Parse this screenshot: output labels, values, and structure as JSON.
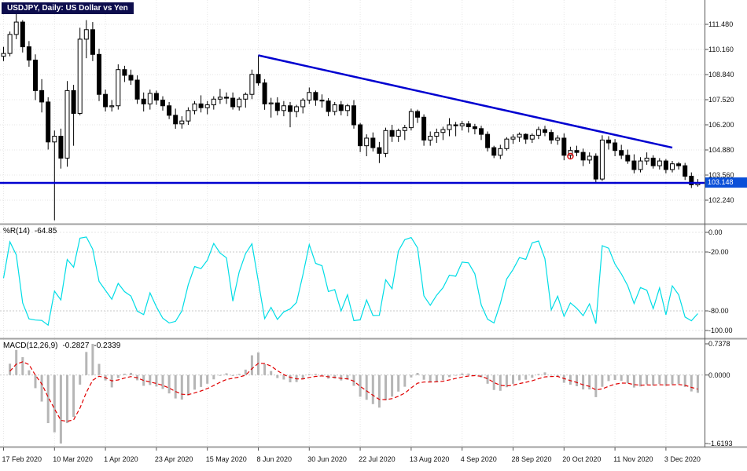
{
  "window": {
    "title_label": "USDJPY, Daily: US Dollar vs Yen"
  },
  "colors": {
    "background": "#ffffff",
    "grid": "#e6e6e6",
    "level_grid": "#c9c9c9",
    "axis_line": "#555555",
    "axis_text": "#111111",
    "separator": "#a0a0a0",
    "title_bg": "#0d0d4d",
    "title_text": "#ffffff",
    "bull_body": "#ffffff",
    "bear_body": "#000000",
    "candle_outline": "#000000",
    "trendline": "#0000d0",
    "hline": "#0000d0",
    "price_badge_bg": "#0a4fd8",
    "marker": "#e01010"
  },
  "chart_data": [
    {
      "type": "candlestick",
      "title": "USDJPY, Daily: US Dollar vs Yen",
      "symbol": "USDJPY",
      "timeframe": "Daily",
      "current_price": "103.148",
      "x_ticks_every": 8,
      "x_tick_labels": [
        "17 Feb 2020",
        "10 Mar 2020",
        "1 Apr 2020",
        "23 Apr 2020",
        "15 May 2020",
        "8 Jun 2020",
        "30 Jun 2020",
        "22 Jul 2020",
        "13 Aug 2020",
        "4 Sep 2020",
        "28 Sep 2020",
        "20 Oct 2020",
        "11 Nov 2020",
        "3 Dec 2020"
      ],
      "y_axis_labels": [
        "111.480",
        "110.160",
        "108.840",
        "107.520",
        "106.200",
        "104.880",
        "103.560",
        "102.240"
      ],
      "y_step": 1.32,
      "ylim": [
        101.0,
        112.76
      ],
      "grid": true,
      "trendline": {
        "from_index": 40,
        "from_price": 109.85,
        "to_index": 105,
        "to_price": 105.0
      },
      "hline": {
        "price": 103.148
      },
      "marker": {
        "index": 89,
        "price": 104.55
      },
      "candles": [
        [
          109.8,
          110.3,
          109.55,
          109.95
        ],
        [
          109.95,
          111.1,
          109.8,
          110.95
        ],
        [
          110.95,
          112.21,
          110.7,
          111.6
        ],
        [
          111.6,
          111.7,
          110.0,
          110.3
        ],
        [
          110.3,
          110.6,
          109.25,
          109.6
        ],
        [
          109.6,
          109.9,
          107.5,
          108.0
        ],
        [
          108.0,
          108.6,
          106.85,
          107.4
        ],
        [
          107.4,
          107.65,
          104.9,
          105.3
        ],
        [
          105.3,
          105.9,
          101.18,
          105.6
        ],
        [
          105.6,
          106.0,
          103.9,
          104.45
        ],
        [
          104.45,
          108.5,
          104.0,
          108.0
        ],
        [
          108.0,
          108.3,
          105.1,
          106.8
        ],
        [
          106.8,
          111.3,
          106.7,
          110.7
        ],
        [
          110.7,
          111.7,
          109.7,
          111.2
        ],
        [
          111.2,
          111.6,
          109.55,
          109.9
        ],
        [
          109.9,
          110.2,
          107.45,
          107.8
        ],
        [
          107.8,
          108.05,
          106.9,
          107.15
        ],
        [
          107.15,
          107.5,
          106.9,
          107.2
        ],
        [
          107.2,
          109.38,
          107.0,
          109.1
        ],
        [
          109.1,
          109.3,
          108.45,
          108.8
        ],
        [
          108.8,
          109.1,
          108.3,
          108.55
        ],
        [
          108.55,
          108.8,
          107.3,
          107.55
        ],
        [
          107.55,
          107.9,
          106.9,
          107.3
        ],
        [
          107.3,
          108.05,
          107.0,
          107.85
        ],
        [
          107.85,
          108.0,
          107.25,
          107.5
        ],
        [
          107.5,
          107.7,
          106.95,
          107.2
        ],
        [
          107.2,
          107.4,
          106.5,
          106.7
        ],
        [
          106.7,
          107.05,
          105.99,
          106.25
        ],
        [
          106.25,
          106.65,
          106.0,
          106.4
        ],
        [
          106.4,
          107.12,
          106.2,
          106.95
        ],
        [
          106.95,
          107.45,
          106.75,
          107.3
        ],
        [
          107.3,
          107.75,
          106.85,
          107.1
        ],
        [
          107.1,
          107.45,
          106.75,
          107.25
        ],
        [
          107.25,
          107.7,
          107.0,
          107.55
        ],
        [
          107.55,
          108.09,
          107.3,
          107.65
        ],
        [
          107.65,
          107.9,
          107.3,
          107.6
        ],
        [
          107.6,
          107.9,
          107.0,
          107.15
        ],
        [
          107.15,
          107.65,
          106.95,
          107.55
        ],
        [
          107.55,
          107.9,
          107.1,
          107.8
        ],
        [
          107.8,
          109.1,
          107.55,
          108.85
        ],
        [
          108.85,
          109.85,
          108.25,
          108.4
        ],
        [
          108.4,
          108.6,
          106.99,
          107.3
        ],
        [
          107.3,
          107.62,
          106.58,
          107.35
        ],
        [
          107.35,
          107.65,
          106.7,
          106.95
        ],
        [
          106.95,
          107.45,
          106.65,
          107.2
        ],
        [
          107.2,
          107.4,
          106.07,
          106.9
        ],
        [
          106.9,
          107.25,
          106.6,
          107.15
        ],
        [
          107.15,
          107.6,
          106.8,
          107.5
        ],
        [
          107.5,
          108.16,
          107.3,
          107.9
        ],
        [
          107.9,
          108.0,
          107.2,
          107.5
        ],
        [
          107.5,
          107.8,
          107.1,
          107.45
        ],
        [
          107.45,
          107.6,
          106.65,
          106.9
        ],
        [
          106.9,
          107.4,
          106.7,
          107.25
        ],
        [
          107.25,
          107.45,
          106.7,
          106.95
        ],
        [
          106.95,
          107.3,
          106.65,
          107.2
        ],
        [
          107.2,
          107.5,
          106.0,
          106.2
        ],
        [
          106.2,
          106.3,
          104.77,
          105.1
        ],
        [
          105.1,
          105.7,
          104.55,
          105.5
        ],
        [
          105.5,
          105.8,
          104.8,
          105.0
        ],
        [
          105.0,
          105.3,
          104.19,
          104.7
        ],
        [
          104.7,
          106.05,
          104.5,
          105.9
        ],
        [
          105.9,
          106.2,
          105.3,
          105.6
        ],
        [
          105.6,
          106.0,
          105.3,
          105.9
        ],
        [
          105.9,
          106.2,
          105.4,
          106.05
        ],
        [
          106.05,
          107.05,
          105.9,
          106.9
        ],
        [
          106.9,
          107.0,
          106.3,
          106.6
        ],
        [
          106.6,
          106.75,
          105.1,
          105.4
        ],
        [
          105.4,
          105.85,
          105.1,
          105.6
        ],
        [
          105.6,
          106.0,
          105.25,
          105.8
        ],
        [
          105.8,
          106.1,
          105.4,
          105.95
        ],
        [
          105.95,
          106.55,
          105.6,
          106.2
        ],
        [
          106.2,
          106.35,
          105.6,
          106.15
        ],
        [
          106.15,
          106.4,
          105.9,
          106.25
        ],
        [
          106.25,
          106.4,
          105.8,
          106.1
        ],
        [
          106.1,
          106.25,
          105.7,
          106.0
        ],
        [
          106.0,
          106.15,
          105.4,
          105.7
        ],
        [
          105.7,
          105.85,
          104.8,
          105.0
        ],
        [
          105.0,
          105.1,
          104.45,
          104.6
        ],
        [
          104.6,
          105.15,
          104.4,
          104.95
        ],
        [
          104.95,
          105.55,
          104.85,
          105.45
        ],
        [
          105.45,
          105.7,
          105.2,
          105.55
        ],
        [
          105.55,
          105.8,
          105.3,
          105.7
        ],
        [
          105.7,
          105.75,
          105.2,
          105.45
        ],
        [
          105.45,
          105.75,
          105.25,
          105.65
        ],
        [
          105.65,
          106.1,
          105.45,
          105.95
        ],
        [
          105.95,
          106.15,
          105.6,
          105.8
        ],
        [
          105.8,
          105.95,
          105.2,
          105.4
        ],
        [
          105.4,
          105.65,
          105.15,
          105.5
        ],
        [
          105.5,
          105.75,
          104.34,
          104.6
        ],
        [
          104.6,
          105.05,
          104.4,
          104.85
        ],
        [
          104.85,
          105.1,
          104.55,
          104.75
        ],
        [
          104.75,
          104.95,
          104.03,
          104.35
        ],
        [
          104.35,
          104.75,
          104.15,
          104.55
        ],
        [
          104.55,
          104.7,
          103.17,
          103.35
        ],
        [
          103.35,
          105.65,
          103.25,
          105.4
        ],
        [
          105.4,
          105.6,
          104.9,
          105.25
        ],
        [
          105.25,
          105.45,
          104.55,
          104.85
        ],
        [
          104.85,
          105.15,
          104.4,
          104.6
        ],
        [
          104.6,
          104.9,
          104.15,
          104.3
        ],
        [
          104.3,
          104.65,
          103.65,
          103.85
        ],
        [
          103.85,
          104.5,
          103.7,
          104.3
        ],
        [
          104.3,
          104.75,
          104.1,
          104.45
        ],
        [
          104.45,
          104.6,
          103.9,
          104.05
        ],
        [
          104.05,
          104.45,
          103.85,
          104.3
        ],
        [
          104.3,
          104.4,
          103.65,
          103.85
        ],
        [
          103.85,
          104.3,
          103.7,
          104.15
        ],
        [
          104.15,
          104.25,
          103.85,
          104.05
        ],
        [
          104.05,
          104.2,
          103.3,
          103.5
        ],
        [
          103.5,
          103.7,
          102.88,
          103.05
        ],
        [
          103.05,
          103.35,
          102.95,
          103.15
        ]
      ]
    },
    {
      "type": "line",
      "indicator": "%R(14)",
      "period": 14,
      "value_label": "-64.85",
      "color": "#00dde6",
      "levels": [
        -20,
        -80
      ],
      "y_axis_labels": [
        "0.00",
        "-20.00",
        "-80.00",
        "-100.00"
      ],
      "ylim": [
        -100,
        0
      ],
      "grid": true
    },
    {
      "type": "macd",
      "indicator": "MACD(12,26,9)",
      "params": [
        12,
        26,
        9
      ],
      "macd_value": "-0.2827",
      "signal_value": "-0.2339",
      "histogram_color": "#b6b6b6",
      "signal_color": "#e00000",
      "y_axis_labels": [
        "0.7378",
        "0.0000",
        "-1.6193"
      ],
      "ylim": [
        -1.6193,
        0.7378
      ],
      "grid": true
    }
  ]
}
